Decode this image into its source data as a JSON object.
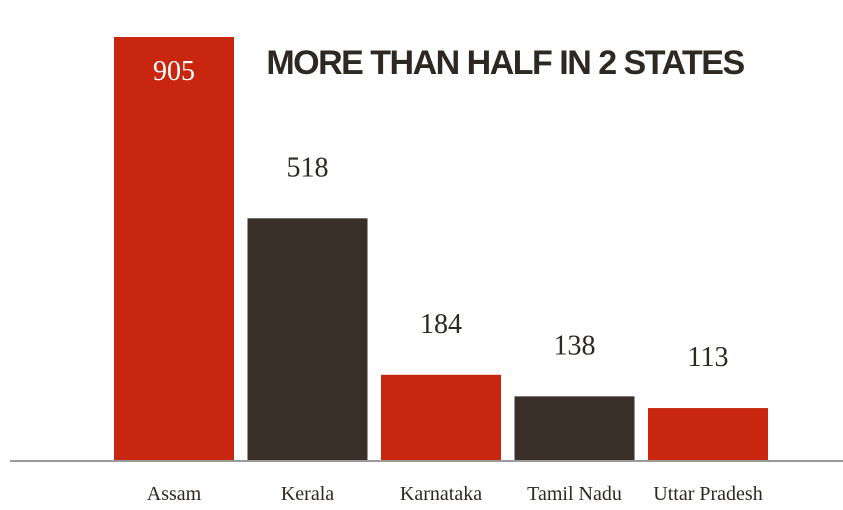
{
  "chart_data": {
    "type": "bar",
    "title": "MORE THAN HALF IN 2 STATES",
    "categories": [
      "Assam",
      "Kerala",
      "Karnataka",
      "Tamil Nadu",
      "Uttar Pradesh"
    ],
    "values": [
      905,
      518,
      184,
      138,
      113
    ],
    "bar_colors": [
      "#c8260e",
      "#3a2f29",
      "#c8260e",
      "#3a2f29",
      "#c8260e"
    ],
    "ylim": [
      0,
      905
    ],
    "grid": false,
    "legend": "none"
  },
  "colors": {
    "red": "#c8260e",
    "dark": "#3a2f29",
    "axis": "#9a9a9a",
    "text": "#2e2823"
  }
}
